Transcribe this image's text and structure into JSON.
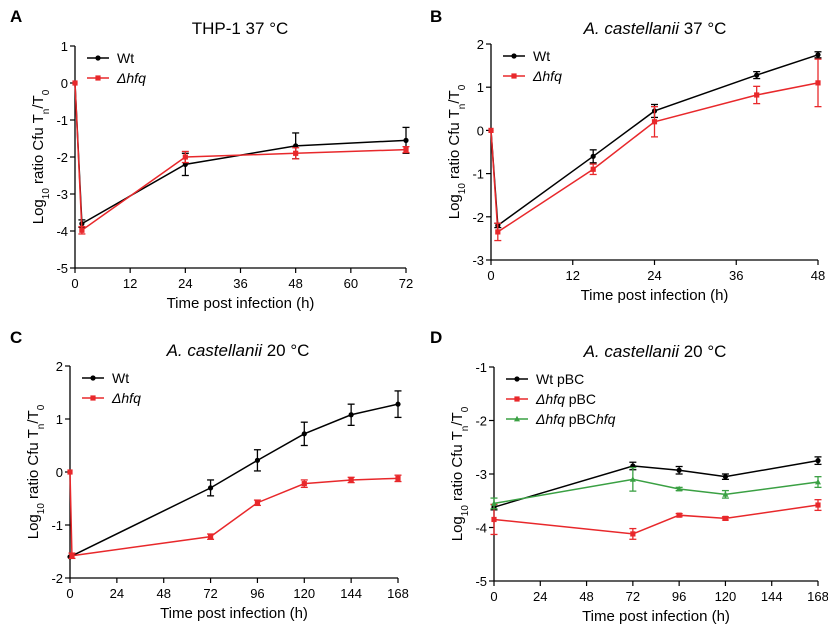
{
  "chart_data": [
    {
      "type": "line",
      "panel_label": "A",
      "title": "THP-1  37 °C",
      "xlabel": "Time post infection (h)",
      "ylabel": "Log10 ratio Cfu Tn/T0",
      "xlim": [
        0,
        72
      ],
      "ylim": [
        -5,
        1
      ],
      "xticks": [
        0,
        12,
        24,
        36,
        48,
        60,
        72
      ],
      "yticks": [
        -5,
        -4,
        -3,
        -2,
        -1,
        0,
        1
      ],
      "legend": "top-left",
      "series": [
        {
          "name": "Wt",
          "color": "#000000",
          "marker": "circle",
          "x": [
            0,
            1.5,
            24,
            48,
            72
          ],
          "y": [
            0,
            -3.8,
            -2.2,
            -1.7,
            -1.55
          ],
          "err": [
            0,
            0.1,
            0.3,
            0.35,
            0.35
          ]
        },
        {
          "name": "Δhfq",
          "color": "#e8282b",
          "marker": "square",
          "x": [
            0,
            1.5,
            24,
            48,
            72
          ],
          "y": [
            0,
            -3.98,
            -2.0,
            -1.9,
            -1.8
          ],
          "err": [
            0,
            0.1,
            0.15,
            0.15,
            0.08
          ]
        }
      ]
    },
    {
      "type": "line",
      "panel_label": "B",
      "title": "A. castellanii   37 °C",
      "xlabel": "Time post infection (h)",
      "ylabel": "Log10 ratio Cfu Tn/T0",
      "xlim": [
        0,
        48
      ],
      "ylim": [
        -3,
        2
      ],
      "xticks": [
        0,
        12,
        24,
        36,
        48
      ],
      "yticks": [
        -3,
        -2,
        -1,
        0,
        1,
        2
      ],
      "legend": "top-left",
      "series": [
        {
          "name": "Wt",
          "color": "#000000",
          "marker": "circle",
          "x": [
            0,
            1,
            15,
            24,
            39,
            48
          ],
          "y": [
            0,
            -2.2,
            -0.6,
            0.45,
            1.28,
            1.75
          ],
          "err": [
            0,
            0.05,
            0.15,
            0.15,
            0.08,
            0.07
          ]
        },
        {
          "name": "Δhfq",
          "color": "#e8282b",
          "marker": "square",
          "x": [
            0,
            1,
            15,
            24,
            39,
            48
          ],
          "y": [
            0,
            -2.35,
            -0.9,
            0.2,
            0.82,
            1.1
          ],
          "err": [
            0,
            0.2,
            0.12,
            0.35,
            0.2,
            0.55
          ]
        }
      ]
    },
    {
      "type": "line",
      "panel_label": "C",
      "title": "A. castellanii   20 °C",
      "xlabel": "Time post infection (h)",
      "ylabel": "Log10 ratio Cfu Tn/T0",
      "xlim": [
        0,
        168
      ],
      "ylim": [
        -2,
        2
      ],
      "xticks": [
        0,
        24,
        48,
        72,
        96,
        120,
        144,
        168
      ],
      "yticks": [
        -2,
        -1,
        0,
        1,
        2
      ],
      "legend": "top-left",
      "series": [
        {
          "name": "Wt",
          "color": "#000000",
          "marker": "circle",
          "x": [
            0,
            72,
            96,
            120,
            144,
            168
          ],
          "y": [
            -1.6,
            -0.3,
            0.22,
            0.72,
            1.08,
            1.28
          ],
          "err": [
            0,
            0.15,
            0.2,
            0.22,
            0.2,
            0.25
          ]
        },
        {
          "name": "Δhfq",
          "color": "#e8282b",
          "marker": "square",
          "x": [
            0,
            1,
            72,
            96,
            120,
            144,
            168
          ],
          "y": [
            0,
            -1.58,
            -1.22,
            -0.58,
            -0.22,
            -0.15,
            -0.12
          ],
          "err": [
            0,
            0.05,
            0.05,
            0.05,
            0.07,
            0.05,
            0.06
          ]
        }
      ]
    },
    {
      "type": "line",
      "panel_label": "D",
      "title": "A. castellanii   20 °C",
      "xlabel": "Time post infection (h)",
      "ylabel": "Log10 ratio Cfu Tn/T0",
      "xlim": [
        0,
        168
      ],
      "ylim": [
        -5,
        -1
      ],
      "xticks": [
        0,
        24,
        48,
        72,
        96,
        120,
        144,
        168
      ],
      "yticks": [
        -5,
        -4,
        -3,
        -2,
        -1
      ],
      "legend": "top-left",
      "series": [
        {
          "name": "Wt pBC",
          "color": "#000000",
          "marker": "circle",
          "x": [
            0,
            72,
            96,
            120,
            168
          ],
          "y": [
            -3.62,
            -2.85,
            -2.93,
            -3.05,
            -2.75
          ],
          "err": [
            0.05,
            0.07,
            0.07,
            0.05,
            0.07
          ]
        },
        {
          "name": "Δhfq pBC",
          "color": "#e8282b",
          "marker": "square",
          "x": [
            0,
            72,
            96,
            120,
            168
          ],
          "y": [
            -3.85,
            -4.12,
            -3.77,
            -3.83,
            -3.58
          ],
          "err": [
            0.28,
            0.1,
            0.03,
            0.03,
            0.1
          ]
        },
        {
          "name": "Δhfq pBChfq",
          "color": "#3aa043",
          "marker": "triangle",
          "x": [
            0,
            72,
            96,
            120,
            168
          ],
          "y": [
            -3.55,
            -3.1,
            -3.28,
            -3.38,
            -3.15
          ],
          "err": [
            0.1,
            0.22,
            0.03,
            0.07,
            0.1
          ]
        }
      ]
    }
  ]
}
